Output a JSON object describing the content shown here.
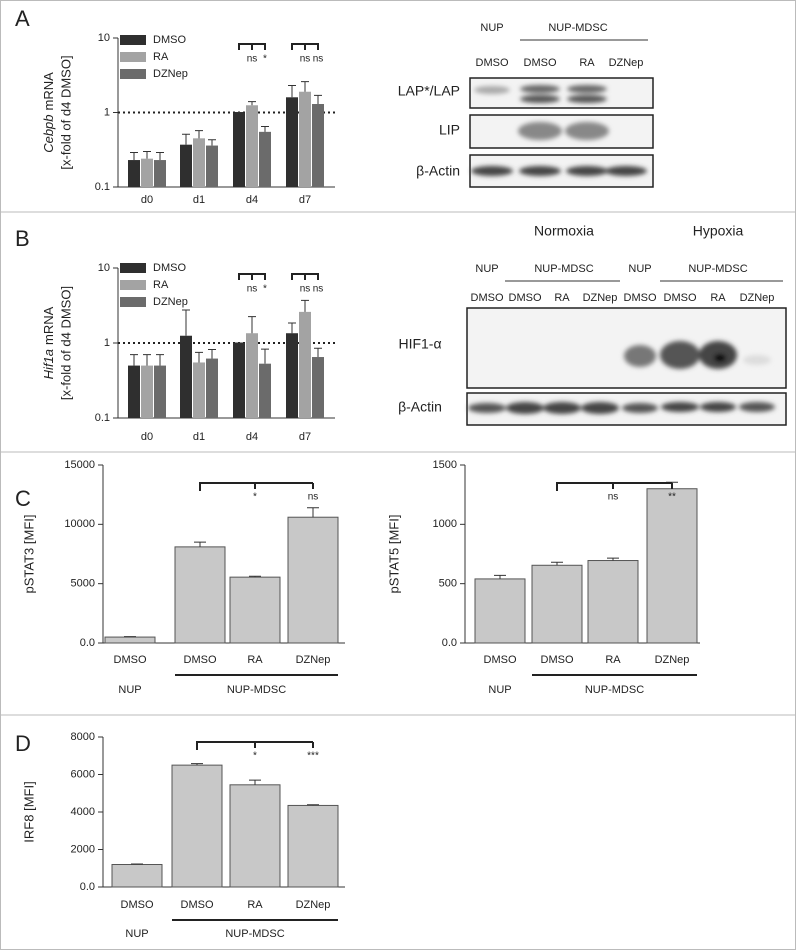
{
  "chart_data": [
    {
      "type": "bar",
      "panel_label": "A",
      "ylabel_gene": "Cebpb",
      "ylabel_rest": "mRNA",
      "ylabel_sub": "[x-fold of d4 DMSO]",
      "categories": [
        "d0",
        "d1",
        "d4",
        "d7"
      ],
      "series": [
        {
          "name": "DMSO",
          "color": "#2f2f2f",
          "values": [
            0.23,
            0.37,
            1,
            1.6
          ],
          "errors": [
            0.06,
            0.14,
            0,
            0.7
          ],
          "annotations": [
            null,
            null,
            null,
            null
          ]
        },
        {
          "name": "RA",
          "color": "#a3a3a3",
          "values": [
            0.24,
            0.45,
            1.25,
            1.9
          ],
          "errors": [
            0.06,
            0.12,
            0.15,
            0.7
          ],
          "annotations": [
            null,
            null,
            "ns",
            "ns"
          ]
        },
        {
          "name": "DZNep",
          "color": "#6b6b6b",
          "values": [
            0.23,
            0.36,
            0.55,
            1.3
          ],
          "errors": [
            0.06,
            0.07,
            0.1,
            0.4
          ],
          "annotations": [
            null,
            null,
            "*",
            "ns"
          ]
        }
      ],
      "ylim": [
        0.1,
        10
      ],
      "yticks": [
        0.1,
        1,
        10
      ],
      "log_scale": true,
      "reference_line": 1
    },
    {
      "type": "bar",
      "panel_label": "B",
      "ylabel_gene": "Hif1a",
      "ylabel_rest": "mRNA",
      "ylabel_sub": "[x-fold of d4 DMSO]",
      "categories": [
        "d0",
        "d1",
        "d4",
        "d7"
      ],
      "series": [
        {
          "name": "DMSO",
          "color": "#2f2f2f",
          "values": [
            0.5,
            1.25,
            1,
            1.35
          ],
          "errors": [
            0.2,
            1.5,
            0,
            0.5
          ],
          "annotations": [
            null,
            null,
            null,
            null
          ]
        },
        {
          "name": "RA",
          "color": "#a3a3a3",
          "values": [
            0.5,
            0.55,
            1.35,
            2.6
          ],
          "errors": [
            0.2,
            0.2,
            0.9,
            1.1
          ],
          "annotations": [
            null,
            null,
            "ns",
            "ns"
          ]
        },
        {
          "name": "DZNep",
          "color": "#6b6b6b",
          "values": [
            0.5,
            0.62,
            0.53,
            0.65
          ],
          "errors": [
            0.2,
            0.2,
            0.3,
            0.2
          ],
          "annotations": [
            null,
            null,
            "*",
            "ns"
          ]
        }
      ],
      "ylim": [
        0.1,
        10
      ],
      "yticks": [
        0.1,
        1,
        10
      ],
      "log_scale": true,
      "reference_line": 1
    },
    {
      "type": "bar",
      "panel_label": "C",
      "ylabel": "pSTAT3 [MFI]",
      "color": "#c8c8c8",
      "categories": [
        "DMSO",
        "DMSO",
        "RA",
        "DZNep"
      ],
      "group_labels": [
        "NUP",
        "NUP-MDSC"
      ],
      "values": [
        500,
        8100,
        5550,
        10600
      ],
      "errors": [
        40,
        400,
        80,
        800
      ],
      "annotations": [
        null,
        null,
        "*",
        "ns"
      ],
      "ylim": [
        0,
        15000
      ],
      "yticks": [
        {
          "value": 0,
          "label": "0.0"
        },
        5000,
        10000,
        15000
      ]
    },
    {
      "type": "bar",
      "ylabel": "pSTAT5 [MFI]",
      "color": "#c8c8c8",
      "categories": [
        "DMSO",
        "DMSO",
        "RA",
        "DZNep"
      ],
      "group_labels": [
        "NUP",
        "NUP-MDSC"
      ],
      "values": [
        540,
        655,
        695,
        1300
      ],
      "errors": [
        30,
        25,
        20,
        55
      ],
      "annotations": [
        null,
        null,
        "ns",
        "**"
      ],
      "ylim": [
        0,
        1500
      ],
      "yticks": [
        {
          "value": 0,
          "label": "0.0"
        },
        500,
        1000,
        1500
      ]
    },
    {
      "type": "bar",
      "panel_label": "D",
      "ylabel": "IRF8 [MFI]",
      "color": "#c8c8c8",
      "categories": [
        "DMSO",
        "DMSO",
        "RA",
        "DZNep"
      ],
      "group_labels": [
        "NUP",
        "NUP-MDSC"
      ],
      "values": [
        1200,
        6500,
        5450,
        4350
      ],
      "errors": [
        30,
        80,
        250,
        40
      ],
      "annotations": [
        null,
        null,
        "*",
        "***"
      ],
      "ylim": [
        0,
        8000
      ],
      "yticks": [
        {
          "value": 0,
          "label": "0.0"
        },
        2000,
        4000,
        6000,
        8000
      ]
    }
  ],
  "blots": [
    {
      "group_labels": [
        "NUP",
        "NUP-MDSC"
      ],
      "lanes": [
        "DMSO",
        "DMSO",
        "RA",
        "DZNep"
      ],
      "rows": [
        "LAP*/LAP",
        "LIP",
        "β-Actin"
      ]
    },
    {
      "conditions": [
        "Normoxia",
        "Hypoxia"
      ],
      "group_labels": [
        "NUP",
        "NUP-MDSC",
        "NUP",
        "NUP-MDSC"
      ],
      "lanes": [
        "DMSO",
        "DMSO",
        "RA",
        "DZNep",
        "DMSO",
        "DMSO",
        "RA",
        "DZNep"
      ],
      "rows": [
        "HIF1-α",
        "β-Actin"
      ]
    }
  ]
}
